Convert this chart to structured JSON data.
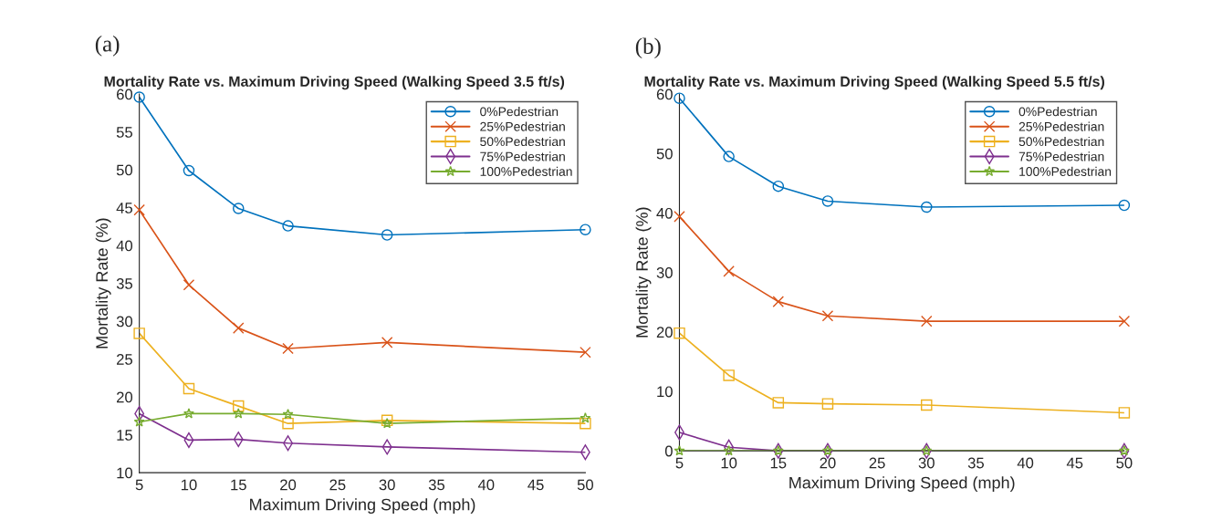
{
  "chart_data": [
    {
      "type": "line",
      "title": "Mortality Rate vs. Maximum Driving Speed (Walking Speed 3.5 ft/s)",
      "xlabel": "Maximum Driving Speed (mph)",
      "ylabel": "Mortality Rate (%)",
      "annotations": [
        "(a)"
      ],
      "x": [
        5,
        10,
        15,
        20,
        30,
        50
      ],
      "xlim": [
        5,
        50
      ],
      "xticks": [
        5,
        10,
        15,
        20,
        25,
        30,
        35,
        40,
        45,
        50
      ],
      "ylim": [
        10,
        60
      ],
      "yticks": [
        10,
        15,
        20,
        25,
        30,
        35,
        40,
        45,
        50,
        55,
        60
      ],
      "grid": false,
      "legend": "top right",
      "line_style": "solid",
      "series": [
        {
          "name": "0%Pedestrian",
          "color": "#0072bd",
          "marker": "circle",
          "values": [
            59.6,
            49.9,
            44.9,
            42.6,
            41.4,
            42.1
          ]
        },
        {
          "name": "25%Pedestrian",
          "color": "#d95319",
          "marker": "cross",
          "values": [
            44.7,
            34.8,
            29.1,
            26.4,
            27.2,
            25.9
          ]
        },
        {
          "name": "50%Pedestrian",
          "color": "#edb120",
          "marker": "square",
          "values": [
            28.4,
            21.1,
            18.8,
            16.5,
            16.9,
            16.5
          ]
        },
        {
          "name": "75%Pedestrian",
          "color": "#7e2f8e",
          "marker": "diamond",
          "values": [
            17.8,
            14.3,
            14.4,
            13.9,
            13.4,
            12.7
          ]
        },
        {
          "name": "100%Pedestrian",
          "color": "#77ac30",
          "marker": "star",
          "values": [
            16.7,
            17.8,
            17.8,
            17.7,
            16.5,
            17.2
          ]
        }
      ]
    },
    {
      "type": "line",
      "title": "Mortality Rate vs. Maximum Driving Speed (Walking Speed 5.5 ft/s)",
      "xlabel": "Maximum Driving Speed (mph)",
      "ylabel": "Mortality Rate (%)",
      "annotations": [
        "(b)"
      ],
      "x": [
        5,
        10,
        15,
        20,
        30,
        50
      ],
      "xlim": [
        5,
        50
      ],
      "xticks": [
        5,
        10,
        15,
        20,
        25,
        30,
        35,
        40,
        45,
        50
      ],
      "ylim": [
        0,
        60
      ],
      "yticks": [
        0,
        10,
        20,
        30,
        40,
        50,
        60
      ],
      "grid": false,
      "legend": "top right",
      "line_style": "solid",
      "series": [
        {
          "name": "0%Pedestrian",
          "color": "#0072bd",
          "marker": "circle",
          "values": [
            59.3,
            49.5,
            44.5,
            42.0,
            41.0,
            41.3
          ]
        },
        {
          "name": "25%Pedestrian",
          "color": "#d95319",
          "marker": "cross",
          "values": [
            39.4,
            30.2,
            25.1,
            22.7,
            21.8,
            21.8
          ]
        },
        {
          "name": "50%Pedestrian",
          "color": "#edb120",
          "marker": "square",
          "values": [
            19.8,
            12.7,
            8.1,
            7.9,
            7.7,
            6.4
          ]
        },
        {
          "name": "75%Pedestrian",
          "color": "#7e2f8e",
          "marker": "diamond",
          "values": [
            3.1,
            0.6,
            0,
            0,
            0,
            0
          ]
        },
        {
          "name": "100%Pedestrian",
          "color": "#77ac30",
          "marker": "star",
          "values": [
            0,
            0,
            0,
            0,
            0,
            0
          ]
        }
      ]
    }
  ]
}
